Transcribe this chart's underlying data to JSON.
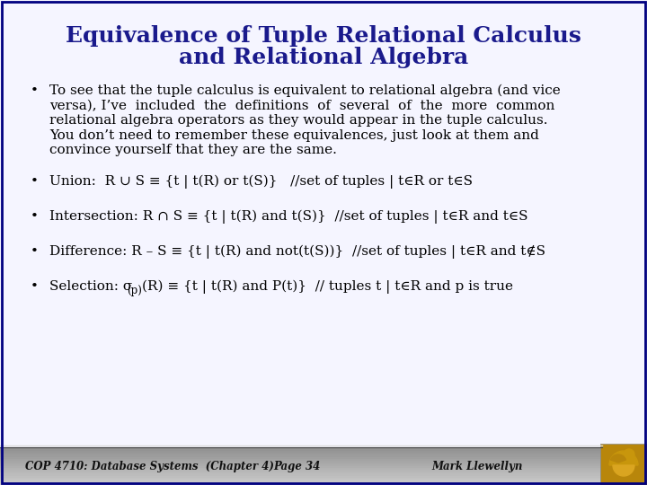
{
  "title_line1": "Equivalence of Tuple Relational Calculus",
  "title_line2": "and Relational Algebra",
  "title_color": "#1a1a8c",
  "bg_color": "#f5f5ff",
  "content_color": "#000000",
  "footer_text": "COP 4710: Database Systems  (Chapter 4)",
  "footer_page": "Page 34",
  "footer_author": "Mark Llewellyn",
  "bullet1_lines": [
    "To see that the tuple calculus is equivalent to relational algebra (and vice",
    "versa), I’ve  included  the  definitions  of  several  of  the  more  common",
    "relational algebra operators as they would appear in the tuple calculus.",
    "You don’t need to remember these equivalences, just look at them and",
    "convince yourself that they are the same."
  ],
  "bullet2": "Union:  R ∪ S ≡ {t | t(R) or t(S)}   //set of tuples | t∈R or t∈S",
  "bullet3": "Intersection: R ∩ S ≡ {t | t(R) and t(S)}  //set of tuples | t∈R and t∈S",
  "bullet4": "Difference: R – S ≡ {t | t(R) and not(t(S))}  //set of tuples | t∈R and t∉S",
  "bullet5_a": "Selection: σ",
  "bullet5_sub": "(p)",
  "bullet5_b": "(R) ≡ {t | t(R) and P(t)}  // tuples t | t∈R and p is true",
  "border_color": "#000080",
  "footer_grad_top": "#cccccc",
  "footer_grad_mid": "#999999",
  "footer_grad_bot": "#bbbbbb"
}
